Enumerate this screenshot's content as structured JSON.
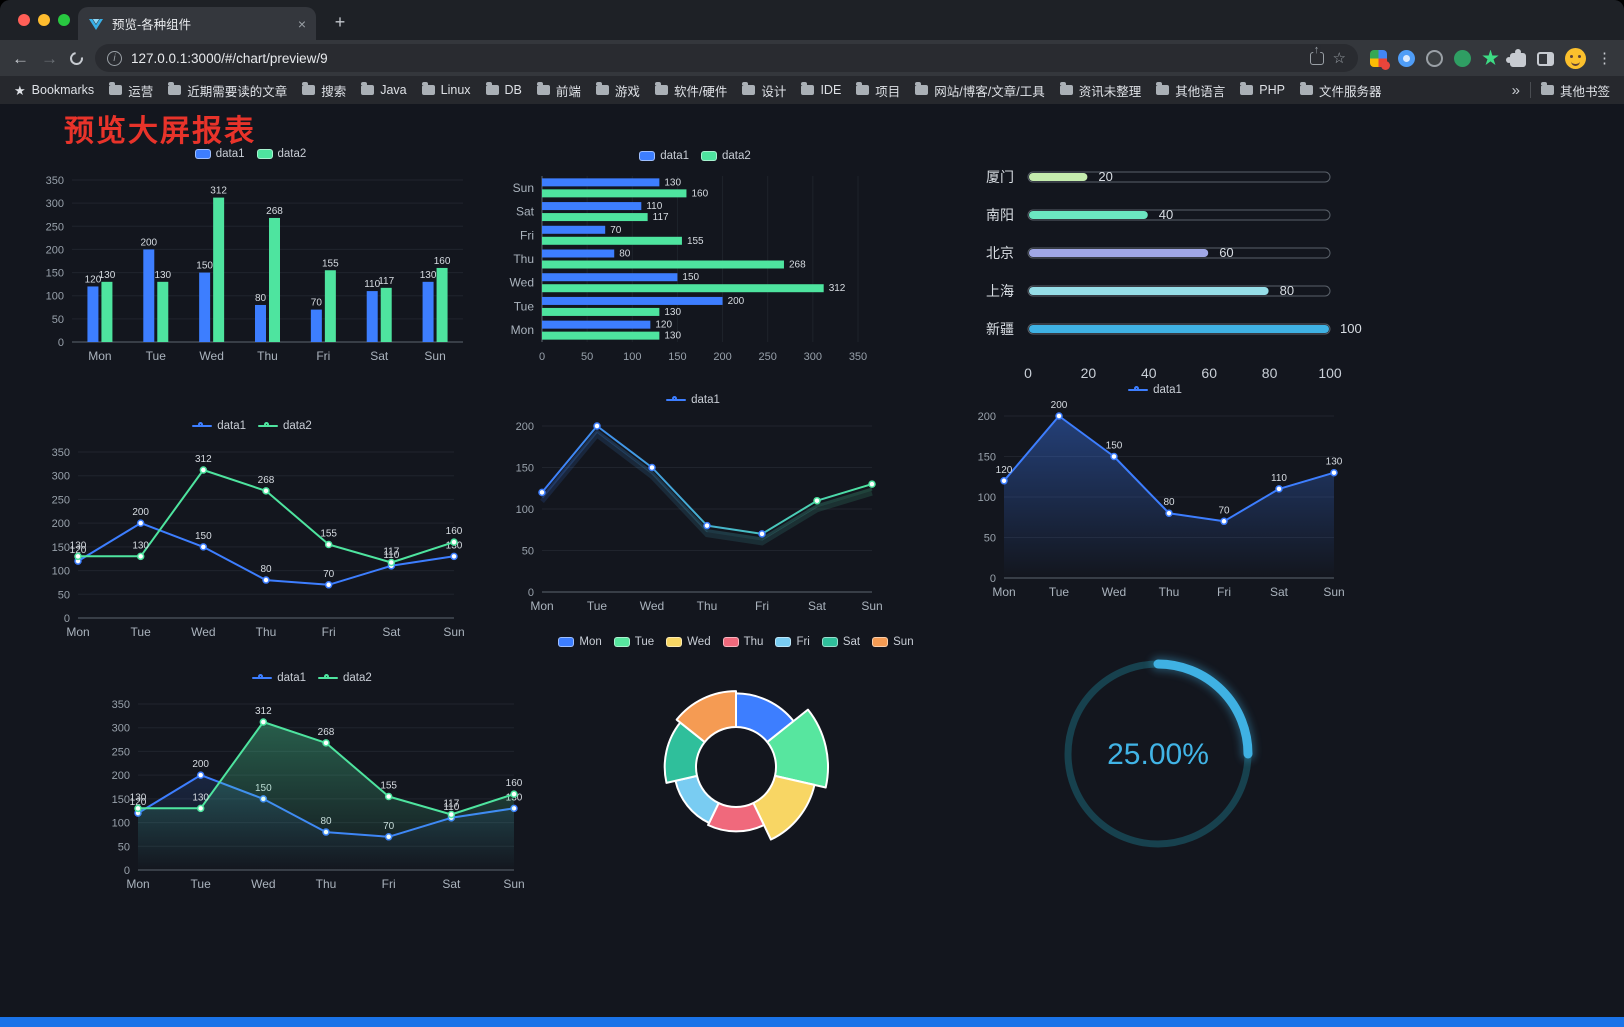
{
  "browser": {
    "tab_title": "预览-各种组件",
    "url": "127.0.0.1:3000/#/chart/preview/9",
    "bookmarks": [
      "Bookmarks",
      "运营",
      "近期需要读的文章",
      "搜索",
      "Java",
      "Linux",
      "DB",
      "前端",
      "游戏",
      "软件/硬件",
      "设计",
      "IDE",
      "项目",
      "网站/博客/文章/工具",
      "资讯未整理",
      "其他语言",
      "PHP",
      "文件服务器"
    ],
    "other_bookmarks": "其他书签",
    "icons": {
      "close": "×",
      "new_tab": "+",
      "back": "←",
      "forward": "→",
      "info": "i",
      "share_arrow": "↑",
      "bookmark_star": "☆",
      "bookmarks_star": "★",
      "more": "⋮",
      "overflow": "»"
    }
  },
  "page": {
    "title": "预览大屏报表"
  },
  "colors": {
    "background": "#13161E",
    "accent_blue": "#3D7EFF",
    "accent_green": "#4EE49F",
    "title_red": "#E8332A",
    "footer_bar": "#1A73E8"
  },
  "chart_data": [
    {
      "id": "bar-grouped",
      "type": "bar",
      "categories": [
        "Mon",
        "Tue",
        "Wed",
        "Thu",
        "Fri",
        "Sat",
        "Sun"
      ],
      "series": [
        {
          "name": "data1",
          "color": "#3D7EFF",
          "values": [
            120,
            200,
            150,
            80,
            70,
            110,
            130
          ]
        },
        {
          "name": "data2",
          "color": "#4EE49F",
          "values": [
            130,
            130,
            312,
            268,
            155,
            117,
            160
          ]
        }
      ],
      "ylim": [
        0,
        350
      ],
      "yticks": [
        0,
        50,
        100,
        150,
        200,
        250,
        300,
        350
      ],
      "show_labels": true,
      "legend_position": "top"
    },
    {
      "id": "bar-horizontal",
      "type": "hbar",
      "categories": [
        "Mon",
        "Tue",
        "Wed",
        "Thu",
        "Fri",
        "Sat",
        "Sun"
      ],
      "series": [
        {
          "name": "data1",
          "color": "#3D7EFF",
          "values": [
            120,
            200,
            150,
            80,
            70,
            110,
            130
          ]
        },
        {
          "name": "data2",
          "color": "#4EE49F",
          "values": [
            130,
            130,
            312,
            268,
            155,
            117,
            160
          ]
        }
      ],
      "xlim": [
        0,
        350
      ],
      "xticks": [
        0,
        50,
        100,
        150,
        200,
        250,
        300,
        350
      ],
      "show_labels": true,
      "legend_position": "top"
    },
    {
      "id": "capsule-bars",
      "type": "capsule",
      "max": 100,
      "xticks": [
        0,
        20,
        40,
        60,
        80,
        100
      ],
      "rows": [
        {
          "label": "厦门",
          "value": 20,
          "color": "#C4EBAD"
        },
        {
          "label": "南阳",
          "value": 40,
          "color": "#6BE6C1"
        },
        {
          "label": "北京",
          "value": 60,
          "color": "#A0A7E6"
        },
        {
          "label": "上海",
          "value": 80,
          "color": "#96DEE8"
        },
        {
          "label": "新疆",
          "value": 100,
          "color": "#3FB1E3"
        }
      ]
    },
    {
      "id": "line-two-series",
      "type": "line",
      "categories": [
        "Mon",
        "Tue",
        "Wed",
        "Thu",
        "Fri",
        "Sat",
        "Sun"
      ],
      "series": [
        {
          "name": "data1",
          "color": "#3D7EFF",
          "values": [
            120,
            200,
            150,
            80,
            70,
            110,
            130
          ]
        },
        {
          "name": "data2",
          "color": "#4EE49F",
          "values": [
            130,
            130,
            312,
            268,
            155,
            117,
            160
          ]
        }
      ],
      "ylim": [
        0,
        350
      ],
      "yticks": [
        0,
        50,
        100,
        150,
        200,
        250,
        300,
        350
      ],
      "show_labels": true,
      "legend_position": "top"
    },
    {
      "id": "line-gradient",
      "type": "line",
      "categories": [
        "Mon",
        "Tue",
        "Wed",
        "Thu",
        "Fri",
        "Sat",
        "Sun"
      ],
      "series": [
        {
          "name": "data1",
          "color": "#3D7EFF",
          "gradient": [
            "#3D7EFF",
            "#4EE49F"
          ],
          "echo": true,
          "values": [
            120,
            200,
            150,
            80,
            70,
            110,
            130
          ]
        }
      ],
      "ylim": [
        0,
        200
      ],
      "yticks": [
        0,
        50,
        100,
        150,
        200
      ],
      "show_labels": false,
      "legend_position": "top"
    },
    {
      "id": "line-area",
      "type": "line",
      "categories": [
        "Mon",
        "Tue",
        "Wed",
        "Thu",
        "Fri",
        "Sat",
        "Sun"
      ],
      "series": [
        {
          "name": "data1",
          "color": "#3D7EFF",
          "area": true,
          "area_opacity": 0.4,
          "values": [
            120,
            200,
            150,
            80,
            70,
            110,
            130
          ]
        }
      ],
      "ylim": [
        0,
        200
      ],
      "yticks": [
        0,
        50,
        100,
        150,
        200
      ],
      "show_labels": true,
      "legend_position": "top"
    },
    {
      "id": "line-two-area",
      "type": "line",
      "categories": [
        "Mon",
        "Tue",
        "Wed",
        "Thu",
        "Fri",
        "Sat",
        "Sun"
      ],
      "series": [
        {
          "name": "data1",
          "color": "#3D7EFF",
          "area": true,
          "area_opacity": 0.15,
          "values": [
            120,
            200,
            150,
            80,
            70,
            110,
            130
          ]
        },
        {
          "name": "data2",
          "color": "#4EE49F",
          "area": true,
          "area_opacity": 0.35,
          "values": [
            130,
            130,
            312,
            268,
            155,
            117,
            160
          ]
        }
      ],
      "ylim": [
        0,
        350
      ],
      "yticks": [
        0,
        50,
        100,
        150,
        200,
        250,
        300,
        350
      ],
      "show_labels": true,
      "legend_position": "top"
    },
    {
      "id": "rose-pie",
      "type": "rose",
      "slices": [
        {
          "name": "Mon",
          "value": 120,
          "color": "#3D7EFF"
        },
        {
          "name": "Tue",
          "value": 200,
          "color": "#57E69F"
        },
        {
          "name": "Wed",
          "value": 150,
          "color": "#F8D664"
        },
        {
          "name": "Thu",
          "value": 80,
          "color": "#F0697C"
        },
        {
          "name": "Fri",
          "value": 70,
          "color": "#79CCF2"
        },
        {
          "name": "Sat",
          "value": 110,
          "color": "#2FBF9B"
        },
        {
          "name": "Sun",
          "value": 130,
          "color": "#F59B53"
        }
      ],
      "legend_position": "top"
    },
    {
      "id": "gauge-progress",
      "type": "gauge",
      "label": "25.00%",
      "percent": 25,
      "color": "#3FB1E3",
      "track_color": "#17414E"
    }
  ]
}
